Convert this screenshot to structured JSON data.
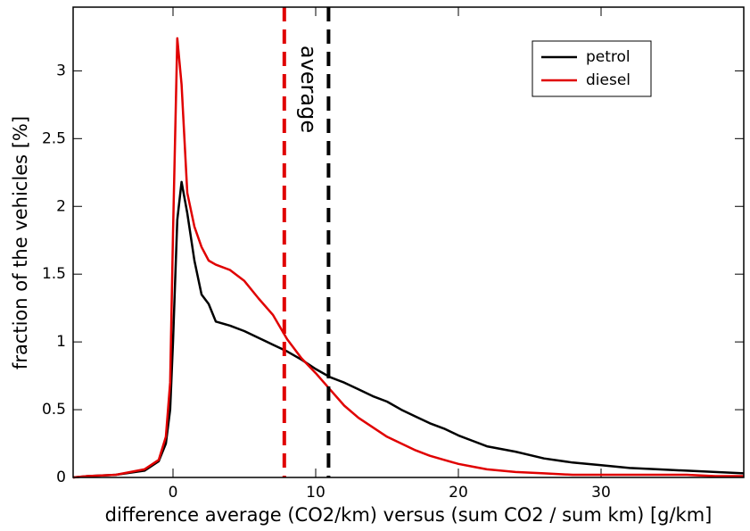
{
  "chart_data": {
    "type": "line",
    "xlabel": "difference average (CO2/km) versus (sum CO2 / sum km) [g/km]",
    "ylabel": "fraction of the vehicles [%]",
    "annotation": "average",
    "x": [
      -7,
      -6,
      -4,
      -2,
      -1,
      -0.5,
      -0.2,
      0,
      0.3,
      0.6,
      1,
      1.5,
      2,
      2.5,
      3,
      4,
      5,
      6,
      7,
      8,
      9,
      10,
      11,
      12,
      13,
      14,
      15,
      16,
      17,
      18,
      19,
      20,
      21,
      22,
      24,
      26,
      28,
      30,
      32,
      34,
      36,
      38,
      40
    ],
    "series": [
      {
        "name": "petrol",
        "color": "#000000",
        "values": [
          0,
          0.01,
          0.02,
          0.05,
          0.12,
          0.25,
          0.5,
          1.0,
          1.9,
          2.18,
          1.95,
          1.6,
          1.35,
          1.28,
          1.15,
          1.12,
          1.08,
          1.03,
          0.98,
          0.93,
          0.87,
          0.8,
          0.74,
          0.7,
          0.65,
          0.6,
          0.56,
          0.5,
          0.45,
          0.4,
          0.36,
          0.31,
          0.27,
          0.23,
          0.19,
          0.14,
          0.11,
          0.09,
          0.07,
          0.06,
          0.05,
          0.04,
          0.03
        ]
      },
      {
        "name": "diesel",
        "color": "#e00000",
        "values": [
          0,
          0.01,
          0.02,
          0.06,
          0.13,
          0.3,
          0.7,
          1.8,
          3.24,
          2.9,
          2.1,
          1.85,
          1.7,
          1.6,
          1.57,
          1.53,
          1.45,
          1.32,
          1.2,
          1.02,
          0.88,
          0.77,
          0.65,
          0.53,
          0.44,
          0.37,
          0.3,
          0.25,
          0.2,
          0.16,
          0.13,
          0.1,
          0.08,
          0.06,
          0.04,
          0.03,
          0.02,
          0.02,
          0.02,
          0.02,
          0.02,
          0.01,
          0.01
        ]
      }
    ],
    "vlines": [
      {
        "x": 7.8,
        "color": "#e00000"
      },
      {
        "x": 10.9,
        "color": "#000000"
      }
    ],
    "xlim": [
      -7,
      40
    ],
    "ylim": [
      0,
      3.47
    ],
    "xticks": [
      0,
      10,
      20,
      30
    ],
    "yticks": [
      0,
      0.5,
      1,
      1.5,
      2,
      2.5,
      3
    ],
    "legend": "upper right"
  }
}
